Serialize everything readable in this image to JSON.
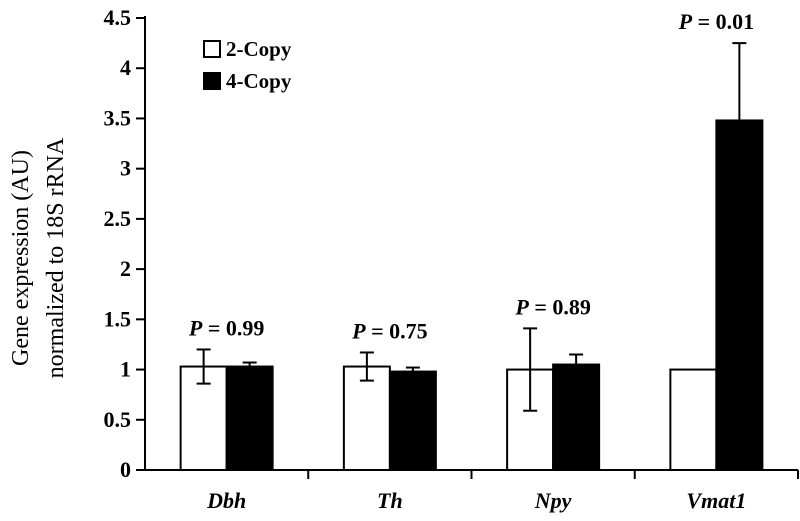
{
  "chart_data": {
    "type": "bar",
    "ylabel_lines": [
      "Gene expression (AU)",
      "normalized to 18S rRNA"
    ],
    "ylim": [
      0,
      4.5
    ],
    "yticks": [
      "0",
      "0.5",
      "1",
      "1.5",
      "2",
      "2.5",
      "3",
      "3.5",
      "4",
      "4.5"
    ],
    "categories": [
      "Dbh",
      "Th",
      "Npy",
      "Vmat1"
    ],
    "series": [
      {
        "name": "2-Copy",
        "color": "#ffffff",
        "values": [
          1.03,
          1.03,
          1.0,
          1.0
        ],
        "errors": [
          0.17,
          0.14,
          0.41,
          0.0
        ]
      },
      {
        "name": "4-Copy",
        "color": "#000000",
        "values": [
          1.03,
          0.98,
          1.05,
          3.48
        ],
        "errors": [
          0.04,
          0.04,
          0.1,
          0.77
        ]
      }
    ],
    "pvalues": [
      {
        "label": "P",
        "text": " = 0.99"
      },
      {
        "label": "P",
        "text": " = 0.75"
      },
      {
        "label": "P",
        "text": " = 0.89"
      },
      {
        "label": "P",
        "text": " = 0.01"
      }
    ],
    "legend_position": "top-left"
  }
}
